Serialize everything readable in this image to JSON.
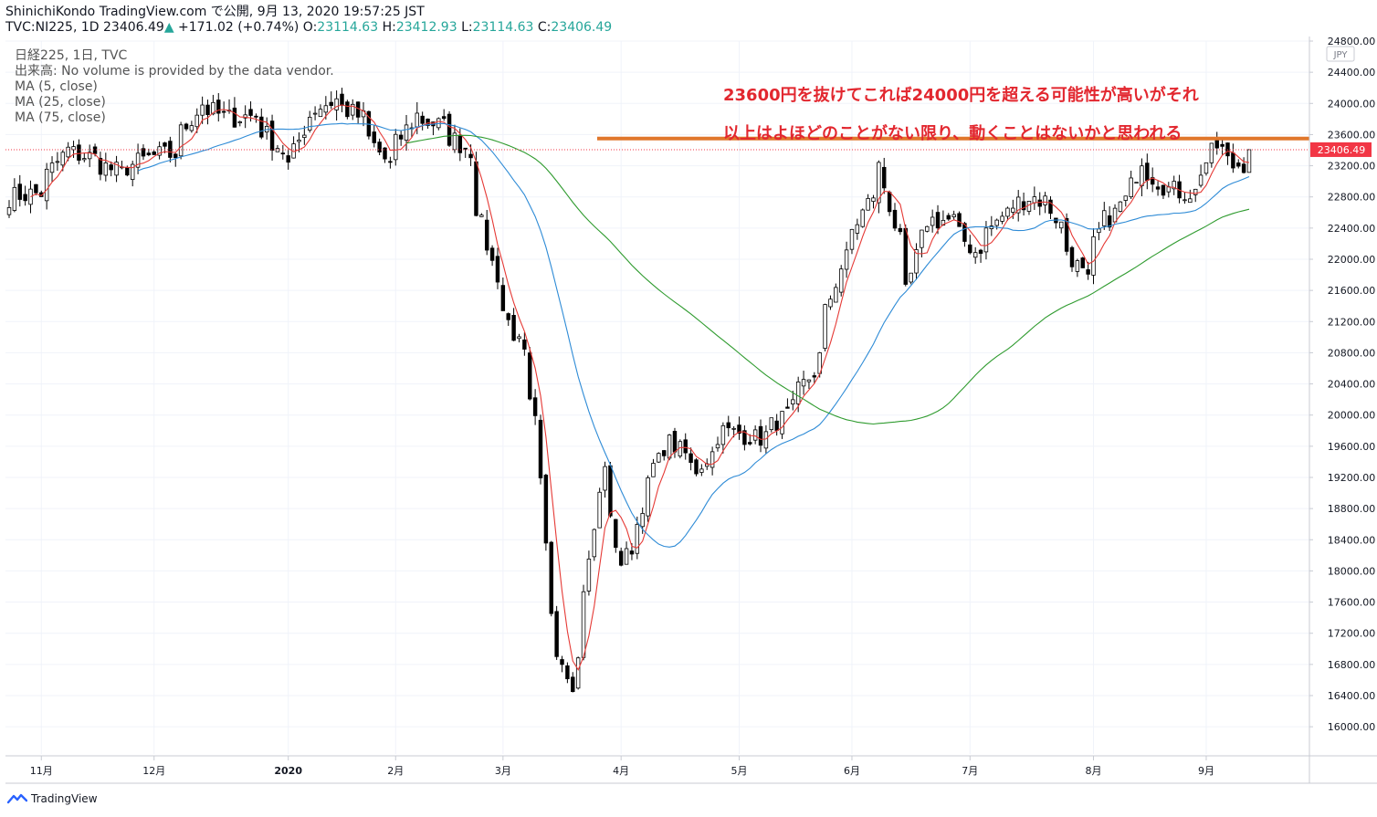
{
  "header": {
    "publish_line": "ShinichiKondo TradingView.com で公開, 9月 13, 2020 19:57:25 JST",
    "symbol": "TVC:NI225, 1D",
    "last": "23406.49",
    "change": "+171.02 (+0.74%)",
    "o_label": "O:",
    "o_value": "23114.63",
    "h_label": "H:",
    "h_value": "23412.93",
    "l_label": "L:",
    "l_value": "23114.63",
    "c_label": "C:",
    "c_value": "23406.49"
  },
  "legend": {
    "series": "日経225, 1日, TVC",
    "volume": "出来高: No volume is provided by the data vendor.",
    "ma5": "MA (5, close)",
    "ma25": "MA (25, close)",
    "ma75": "MA (75, close)"
  },
  "annotation": {
    "line1": "23600円を抜けてこれば24000円を超える可能性が高いがそれ",
    "line2": "以上はよほどのことがない限り、動くことはないかと思われる"
  },
  "footer": {
    "brand": "TradingView"
  },
  "colors": {
    "ma5": "#e53935",
    "ma25": "#2e8bd6",
    "ma75": "#2f9b2f",
    "resistance": "#e0772c",
    "price_tag": "#f23645",
    "annotation": "#e2272f"
  },
  "chart_data": {
    "type": "candlestick",
    "currency": "JPY",
    "last_price": 23406.49,
    "last_price_label": "23406.49",
    "resistance_level": 23550,
    "ylim": [
      15650,
      24800
    ],
    "yticks": [
      16000,
      16400,
      16800,
      17200,
      17600,
      18000,
      18400,
      18800,
      19200,
      19600,
      20000,
      20400,
      20800,
      21200,
      21600,
      22000,
      22400,
      22800,
      23200,
      23600,
      24000,
      24400,
      24800
    ],
    "xticks": [
      {
        "label": "11月",
        "date": "2019-11-01"
      },
      {
        "label": "12月",
        "date": "2019-12-02"
      },
      {
        "label": "2020",
        "date": "2020-01-06"
      },
      {
        "label": "2月",
        "date": "2020-02-03"
      },
      {
        "label": "3月",
        "date": "2020-03-02"
      },
      {
        "label": "4月",
        "date": "2020-04-01"
      },
      {
        "label": "5月",
        "date": "2020-05-01"
      },
      {
        "label": "6月",
        "date": "2020-06-01"
      },
      {
        "label": "7月",
        "date": "2020-07-01"
      },
      {
        "label": "8月",
        "date": "2020-08-03"
      },
      {
        "label": "9月",
        "date": "2020-09-01"
      }
    ],
    "date_range": [
      "2019-10-24",
      "2020-09-11"
    ],
    "close_anchors": [
      {
        "date": "2019-10-24",
        "close": 22800
      },
      {
        "date": "2019-11-01",
        "close": 22850
      },
      {
        "date": "2019-11-08",
        "close": 23400
      },
      {
        "date": "2019-11-15",
        "close": 23300
      },
      {
        "date": "2019-11-22",
        "close": 23100
      },
      {
        "date": "2019-11-29",
        "close": 23300
      },
      {
        "date": "2019-12-06",
        "close": 23350
      },
      {
        "date": "2019-12-13",
        "close": 24000
      },
      {
        "date": "2019-12-20",
        "close": 23800
      },
      {
        "date": "2019-12-27",
        "close": 23850
      },
      {
        "date": "2020-01-06",
        "close": 23200
      },
      {
        "date": "2020-01-10",
        "close": 23850
      },
      {
        "date": "2020-01-17",
        "close": 24050
      },
      {
        "date": "2020-01-24",
        "close": 23800
      },
      {
        "date": "2020-01-31",
        "close": 23200
      },
      {
        "date": "2020-02-07",
        "close": 23850
      },
      {
        "date": "2020-02-14",
        "close": 23700
      },
      {
        "date": "2020-02-21",
        "close": 23400
      },
      {
        "date": "2020-02-27",
        "close": 21950
      },
      {
        "date": "2020-03-02",
        "close": 21350
      },
      {
        "date": "2020-03-06",
        "close": 20750
      },
      {
        "date": "2020-03-10",
        "close": 19900
      },
      {
        "date": "2020-03-13",
        "close": 17500
      },
      {
        "date": "2020-03-16",
        "close": 17000
      },
      {
        "date": "2020-03-19",
        "close": 16550
      },
      {
        "date": "2020-03-24",
        "close": 18100
      },
      {
        "date": "2020-03-27",
        "close": 19400
      },
      {
        "date": "2020-04-01",
        "close": 18100
      },
      {
        "date": "2020-04-06",
        "close": 18600
      },
      {
        "date": "2020-04-09",
        "close": 19350
      },
      {
        "date": "2020-04-14",
        "close": 19650
      },
      {
        "date": "2020-04-21",
        "close": 19300
      },
      {
        "date": "2020-04-28",
        "close": 19800
      },
      {
        "date": "2020-05-07",
        "close": 19700
      },
      {
        "date": "2020-05-14",
        "close": 20000
      },
      {
        "date": "2020-05-21",
        "close": 20550
      },
      {
        "date": "2020-05-28",
        "close": 21900
      },
      {
        "date": "2020-06-03",
        "close": 22600
      },
      {
        "date": "2020-06-08",
        "close": 23180
      },
      {
        "date": "2020-06-11",
        "close": 22450
      },
      {
        "date": "2020-06-15",
        "close": 21550
      },
      {
        "date": "2020-06-19",
        "close": 22500
      },
      {
        "date": "2020-06-26",
        "close": 22500
      },
      {
        "date": "2020-07-02",
        "close": 22100
      },
      {
        "date": "2020-07-09",
        "close": 22550
      },
      {
        "date": "2020-07-16",
        "close": 22800
      },
      {
        "date": "2020-07-21",
        "close": 22750
      },
      {
        "date": "2020-07-31",
        "close": 21700
      },
      {
        "date": "2020-08-05",
        "close": 22500
      },
      {
        "date": "2020-08-11",
        "close": 22750
      },
      {
        "date": "2020-08-14",
        "close": 23300
      },
      {
        "date": "2020-08-21",
        "close": 22900
      },
      {
        "date": "2020-08-28",
        "close": 22850
      },
      {
        "date": "2020-09-03",
        "close": 23450
      },
      {
        "date": "2020-09-08",
        "close": 23200
      },
      {
        "date": "2020-09-10",
        "close": 23235
      },
      {
        "date": "2020-09-11",
        "close": 23406
      }
    ],
    "series": [
      {
        "name": "MA (5, close)",
        "type": "line"
      },
      {
        "name": "MA (25, close)",
        "type": "line"
      },
      {
        "name": "MA (75, close)",
        "type": "line"
      }
    ]
  }
}
